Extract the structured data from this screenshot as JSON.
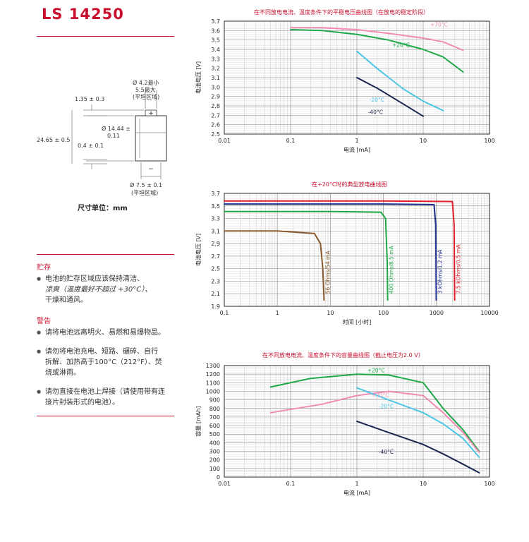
{
  "header": {
    "model": "LS 14250"
  },
  "drawing": {
    "top_dia": "Ø 4.2最小",
    "top_len": "5.5最大",
    "top_flat": "(平坦区域)",
    "plus": "+",
    "minus": "−",
    "term_h": "1.35 ± 0.3",
    "body_dia_1": "Ø 14.44 ±",
    "body_dia_2": "0.11",
    "length": "24.65 ± 0.5",
    "neg_h": "0.4 ± 0.1",
    "bottom_dia": "Ø 7.5 ± 0.1",
    "bottom_flat": "(平坦区域)"
  },
  "unit_note": "尺寸单位：mm",
  "storage": {
    "heading": "贮存",
    "items": [
      {
        "line1": "电池的贮存区域应该保持清洁、",
        "line2": "凉爽（温度最好不超过 +30°C）、",
        "line3": "干燥和通风。"
      }
    ]
  },
  "warning": {
    "heading": "警告",
    "items": [
      {
        "line1": "请将电池远离明火、易燃和易爆物品。"
      },
      {
        "line1": "请勿将电池充电、短路、碾碎、自行",
        "line2": "拆解、加热高于100°C（212°F）、焚",
        "line3": "烧或淋雨。"
      },
      {
        "line1": "请勿直接在电池上焊接（请使用带有连",
        "line2": "接片封装形式的电池）。"
      }
    ]
  },
  "bullet_symbol": "●",
  "chart_data": [
    {
      "type": "line",
      "title": "在不同放电电流、温度条件下的平稳电压曲线图（在放电的稳定阶段）",
      "xlabel": "电流 [mA]",
      "ylabel": "电池电压 [V]",
      "xscale": "log",
      "xlim": [
        0.01,
        100
      ],
      "ylim": [
        2.5,
        3.7
      ],
      "xticks": [
        "0.01",
        "0.1",
        "1",
        "10",
        "100"
      ],
      "yticks": [
        "2.5",
        "2.6",
        "2.7",
        "2.8",
        "2.9",
        "3.0",
        "3.1",
        "3.2",
        "3.3",
        "3.4",
        "3.5",
        "3.6",
        "3.7"
      ],
      "series": [
        {
          "name": "+70°C",
          "color": "#f08cb4",
          "points": [
            [
              0.1,
              3.63
            ],
            [
              0.3,
              3.63
            ],
            [
              1,
              3.61
            ],
            [
              3,
              3.57
            ],
            [
              10,
              3.52
            ],
            [
              20,
              3.48
            ],
            [
              40,
              3.39
            ]
          ]
        },
        {
          "name": "+20°C",
          "color": "#1fa84a",
          "points": [
            [
              0.1,
              3.61
            ],
            [
              0.3,
              3.6
            ],
            [
              1,
              3.56
            ],
            [
              3,
              3.5
            ],
            [
              10,
              3.4
            ],
            [
              20,
              3.32
            ],
            [
              40,
              3.16
            ]
          ]
        },
        {
          "name": "-20°C",
          "color": "#4ec6e6",
          "points": [
            [
              1,
              3.38
            ],
            [
              2,
              3.2
            ],
            [
              5,
              2.98
            ],
            [
              10,
              2.85
            ],
            [
              20,
              2.75
            ]
          ]
        },
        {
          "name": "-40°C",
          "color": "#1a2550",
          "points": [
            [
              1,
              3.1
            ],
            [
              2,
              2.99
            ],
            [
              5,
              2.82
            ],
            [
              10,
              2.69
            ]
          ]
        }
      ]
    },
    {
      "type": "line",
      "title": "在+20°C时的典型放电曲线图",
      "xlabel": "时间 [小时]",
      "ylabel": "电池电压 [V]",
      "xscale": "log",
      "xlim": [
        0.1,
        10000
      ],
      "ylim": [
        1.9,
        3.7
      ],
      "xticks": [
        "0.1",
        "1",
        "10",
        "100",
        "1000",
        "10000"
      ],
      "yticks": [
        "1.9",
        "2.1",
        "2.3",
        "2.5",
        "2.7",
        "2.9",
        "3.1",
        "3.3",
        "3.5",
        "3.7"
      ],
      "series": [
        {
          "name": "56 Ohms/54 mA",
          "color": "#8b5a2b",
          "points": [
            [
              0.1,
              3.1
            ],
            [
              1,
              3.1
            ],
            [
              5,
              3.06
            ],
            [
              6.5,
              2.9
            ],
            [
              7.2,
              2.5
            ],
            [
              7.6,
              2.0
            ]
          ]
        },
        {
          "name": "400 Ohms/8.5 mA",
          "color": "#1fa84a",
          "points": [
            [
              0.1,
              3.41
            ],
            [
              10,
              3.41
            ],
            [
              90,
              3.4
            ],
            [
              110,
              3.3
            ],
            [
              118,
              2.6
            ],
            [
              120,
              2.0
            ]
          ]
        },
        {
          "name": "3 kOhms/1.2 mA",
          "color": "#1f2f8f",
          "points": [
            [
              0.1,
              3.53
            ],
            [
              100,
              3.53
            ],
            [
              900,
              3.52
            ],
            [
              970,
              3.2
            ],
            [
              990,
              2.0
            ]
          ]
        },
        {
          "name": "7.5 kOhms/0.5 mA",
          "color": "#e01e2a",
          "points": [
            [
              0.1,
              3.58
            ],
            [
              100,
              3.58
            ],
            [
              2000,
              3.57
            ],
            [
              2150,
              3.2
            ],
            [
              2200,
              2.0
            ]
          ]
        }
      ]
    },
    {
      "type": "line",
      "title": "在不同放电电流、温度条件下的容量曲线图（截止电压为2.0 V）",
      "xlabel": "电流 [mA]",
      "ylabel": "容量 [mAh]",
      "xscale": "log",
      "xlim": [
        0.01,
        100
      ],
      "ylim": [
        0,
        1300
      ],
      "xticks": [
        "0.01",
        "0.1",
        "1",
        "10",
        "100"
      ],
      "yticks": [
        "0",
        "100",
        "200",
        "300",
        "400",
        "500",
        "600",
        "700",
        "800",
        "900",
        "1000",
        "1100",
        "1200",
        "1300"
      ],
      "series": [
        {
          "name": "+20°C",
          "color": "#1fa84a",
          "points": [
            [
              0.05,
              1050
            ],
            [
              0.2,
              1150
            ],
            [
              1,
              1200
            ],
            [
              3,
              1190
            ],
            [
              10,
              1100
            ],
            [
              20,
              800
            ],
            [
              40,
              550
            ],
            [
              70,
              300
            ]
          ]
        },
        {
          "name": "+70°C",
          "color": "#f08cb4",
          "points": [
            [
              0.05,
              750
            ],
            [
              0.3,
              850
            ],
            [
              1,
              950
            ],
            [
              3,
              1000
            ],
            [
              10,
              950
            ],
            [
              20,
              750
            ],
            [
              40,
              520
            ],
            [
              70,
              290
            ]
          ]
        },
        {
          "name": "-20°C",
          "color": "#4ec6e6",
          "points": [
            [
              1,
              1040
            ],
            [
              3,
              900
            ],
            [
              10,
              750
            ],
            [
              20,
              620
            ],
            [
              40,
              450
            ],
            [
              70,
              230
            ]
          ]
        },
        {
          "name": "-40°C",
          "color": "#1a2550",
          "points": [
            [
              1,
              650
            ],
            [
              3,
              520
            ],
            [
              10,
              380
            ],
            [
              20,
              270
            ],
            [
              40,
              150
            ],
            [
              70,
              50
            ]
          ]
        }
      ]
    }
  ]
}
